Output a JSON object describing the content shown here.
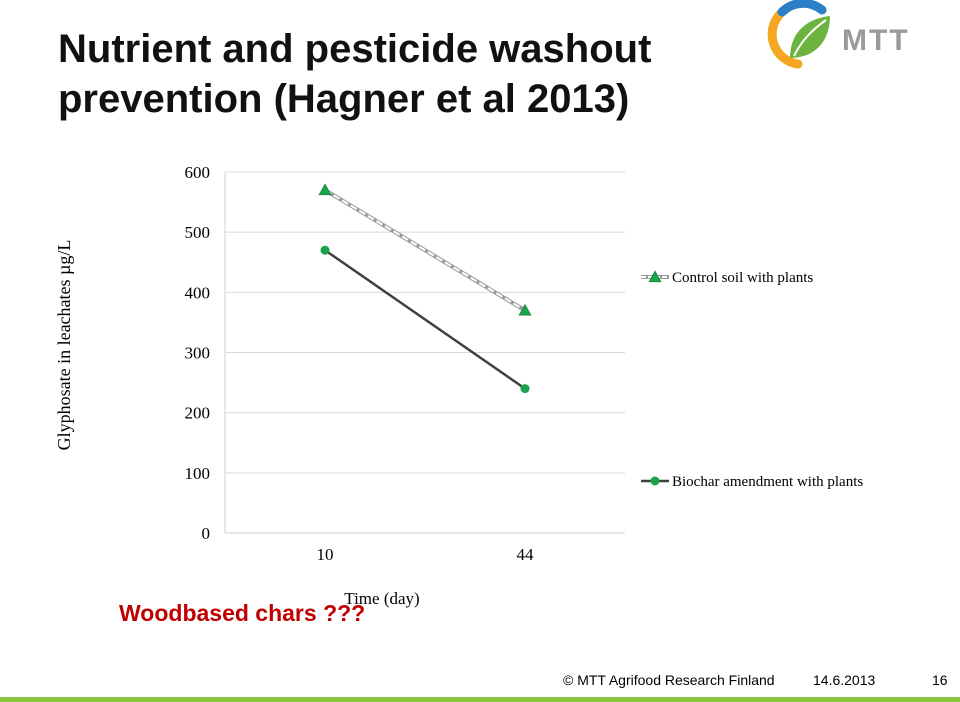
{
  "slide": {
    "title_line1": "Nutrient and pesticide washout",
    "title_line2": "prevention (Hagner et al 2013)",
    "note": "Woodbased chars ???",
    "logo_text": "MTT"
  },
  "footer": {
    "copyright": "© MTT Agrifood Research Finland",
    "date": "14.6.2013",
    "page": "16"
  },
  "colors": {
    "control": "#cccccc",
    "biochar": "#404040",
    "marker_green": "#1aa34a",
    "note_red": "#c00000",
    "footer_green": "#8cc63f"
  },
  "chart_data": {
    "type": "line",
    "title": "",
    "xlabel": "Time (day)",
    "ylabel": "Glyphosate in leachates  µg/L",
    "categories": [
      "10",
      "44"
    ],
    "ylim": [
      0,
      600
    ],
    "yticks": [
      0,
      100,
      200,
      300,
      400,
      500,
      600
    ],
    "grid": true,
    "legend_position": "right",
    "series": [
      {
        "name": "Control soil with plants",
        "values": [
          570,
          370
        ],
        "marker": "triangle",
        "line_style": "dashed"
      },
      {
        "name": "Biochar amendment with plants",
        "values": [
          470,
          240
        ],
        "marker": "circle",
        "line_style": "solid"
      }
    ]
  }
}
